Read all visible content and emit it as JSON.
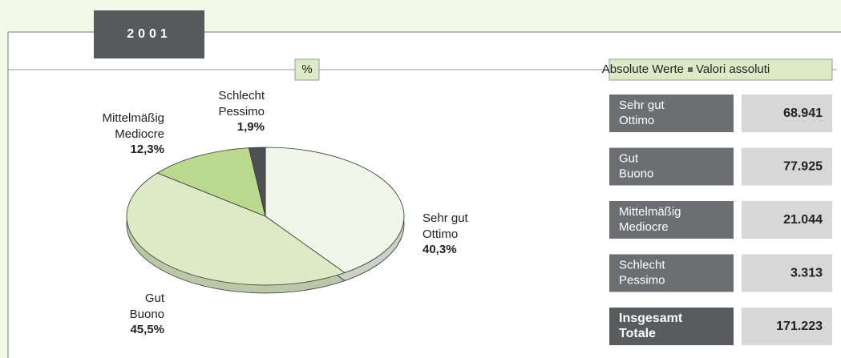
{
  "year": "2001",
  "chart_data": {
    "type": "pie",
    "title": "%",
    "categories": [
      "Sehr gut",
      "Gut",
      "Mittelmäßig",
      "Schlecht"
    ],
    "categories_it": [
      "Ottimo",
      "Buono",
      "Mediocre",
      "Pessimo"
    ],
    "values": [
      40.3,
      45.5,
      12.3,
      1.9
    ],
    "value_labels": [
      "40,3%",
      "45,5%",
      "12,3%",
      "1,9%"
    ],
    "colors": [
      "#f1f6e8",
      "#dcebc6",
      "#b9d98f",
      "#4f5052"
    ]
  },
  "table": {
    "title_de": "Absolute Werte",
    "title_it": "Valori assoluti",
    "rows": [
      {
        "label": [
          "Sehr gut",
          "Ottimo"
        ],
        "value": "68.941"
      },
      {
        "label": [
          "Gut",
          "Buono"
        ],
        "value": "77.925"
      },
      {
        "label": [
          "Mittelmäßig",
          "Mediocre"
        ],
        "value": "21.044"
      },
      {
        "label": [
          "Schlecht",
          "Pessimo"
        ],
        "value": "3.313"
      },
      {
        "label": [
          "Insgesamt",
          "Totale"
        ],
        "value": "171.223",
        "total": true
      }
    ]
  }
}
